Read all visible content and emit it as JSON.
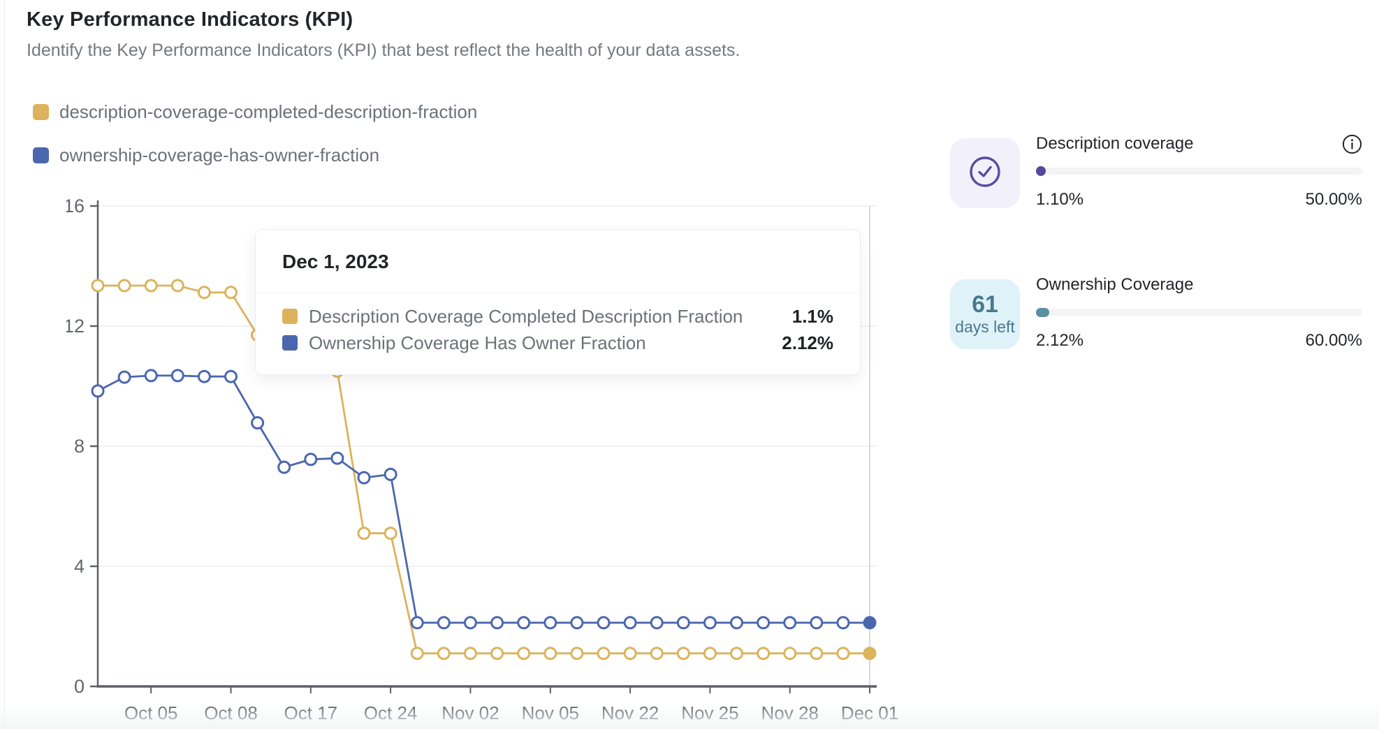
{
  "page": {
    "title": "Key Performance Indicators (KPI)",
    "subtitle": "Identify the Key Performance Indicators (KPI) that best reflect the health of your data assets."
  },
  "legend": {
    "items": [
      {
        "label": "description-coverage-completed-description-fraction",
        "color": "#DCB35C"
      },
      {
        "label": "ownership-coverage-has-owner-fraction",
        "color": "#4A67AE"
      }
    ]
  },
  "chart_data": {
    "type": "line",
    "x_tick_labels": [
      "Oct 05",
      "Oct 08",
      "Oct 17",
      "Oct 24",
      "Nov 02",
      "Nov 05",
      "Nov 22",
      "Nov 25",
      "Nov 28",
      "Dec 01"
    ],
    "x_tick_point_indices": [
      2,
      5,
      8,
      11,
      14,
      17,
      20,
      23,
      26,
      29
    ],
    "y_ticks": [
      0,
      4,
      8,
      12,
      16
    ],
    "ylim": [
      0,
      16
    ],
    "grid": "horizontal",
    "crosshair_at_index": 29,
    "last_point_filled": true,
    "series": [
      {
        "name": "Description Coverage Completed Description Fraction",
        "color": "#DCB35C",
        "values": [
          13.35,
          13.35,
          13.35,
          13.35,
          13.12,
          13.12,
          11.7,
          11.3,
          10.9,
          10.5,
          5.1,
          5.1,
          1.1,
          1.1,
          1.1,
          1.1,
          1.1,
          1.1,
          1.1,
          1.1,
          1.1,
          1.1,
          1.1,
          1.1,
          1.1,
          1.1,
          1.1,
          1.1,
          1.1,
          1.1
        ]
      },
      {
        "name": "Ownership Coverage Has Owner Fraction",
        "color": "#4A67AE",
        "values": [
          9.84,
          10.3,
          10.35,
          10.35,
          10.32,
          10.32,
          8.78,
          7.3,
          7.56,
          7.6,
          6.95,
          7.06,
          2.12,
          2.12,
          2.12,
          2.12,
          2.12,
          2.12,
          2.12,
          2.12,
          2.12,
          2.12,
          2.12,
          2.12,
          2.12,
          2.12,
          2.12,
          2.12,
          2.12,
          2.12
        ]
      }
    ]
  },
  "tooltip": {
    "date": "Dec 1, 2023",
    "rows": [
      {
        "label": "Description Coverage Completed Description Fraction",
        "value": "1.1%",
        "color": "#DCB35C"
      },
      {
        "label": "Ownership Coverage Has Owner Fraction",
        "value": "2.12%",
        "color": "#4A67AE"
      }
    ]
  },
  "kpi_cards": [
    {
      "title": "Description coverage",
      "current": "1.10%",
      "target": "50.00%",
      "accent": "#584CA0",
      "badge_bg": "#F2F0FB",
      "dot_color": "#54489B"
    },
    {
      "title": "Ownership Coverage",
      "current": "2.12%",
      "target": "60.00%",
      "accent": "#47798E",
      "badge_bg": "#DFF2F7",
      "dot_color": "#5A8FA0",
      "days_left_number": "61",
      "days_left_label": "days left"
    }
  ]
}
